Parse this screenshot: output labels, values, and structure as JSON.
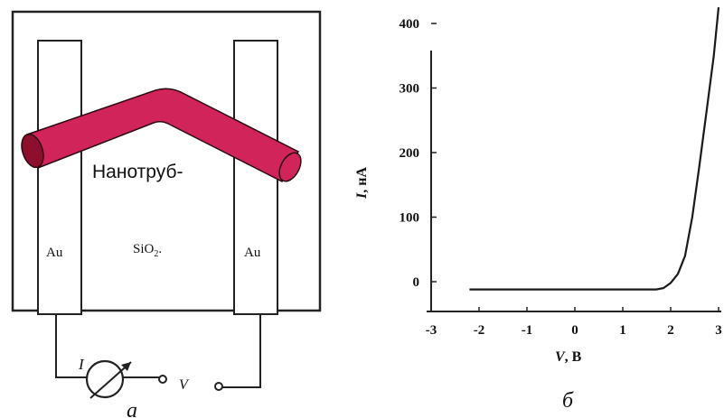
{
  "panel_a": {
    "tube_label": "Нанотруб-",
    "electrode_left": "Au",
    "electrode_right": "Au",
    "substrate": "SiO",
    "substrate_sub": "2",
    "substrate_suffix": ".",
    "meter_label": "I",
    "voltage_label": "V",
    "caption": "а",
    "tube_color": "#d0245a",
    "tube_end_color": "#8c0f2e"
  },
  "panel_b": {
    "caption": "б",
    "chart_data": {
      "type": "line",
      "xlabel_var": "V",
      "xlabel_unit": ", В",
      "ylabel_var": "I",
      "ylabel_unit": ", нА",
      "xlim": [
        -3,
        3
      ],
      "ylim": [
        -20,
        440
      ],
      "x_ticks": [
        "-3",
        "-2",
        "-1",
        "0",
        "1",
        "2",
        "3"
      ],
      "y_ticks": [
        "0",
        "100",
        "200",
        "300",
        "400"
      ],
      "series": [
        {
          "x": [
            -2.2,
            -1.0,
            0.0,
            1.0,
            1.7,
            1.85,
            2.0,
            2.15,
            2.3,
            2.45,
            2.6,
            2.75,
            2.9,
            3.0
          ],
          "y": [
            -12,
            -12,
            -12,
            -12,
            -12,
            -10,
            -2,
            12,
            40,
            100,
            180,
            265,
            350,
            425
          ]
        }
      ],
      "grid": false,
      "line_color": "#1a1a1a"
    }
  }
}
